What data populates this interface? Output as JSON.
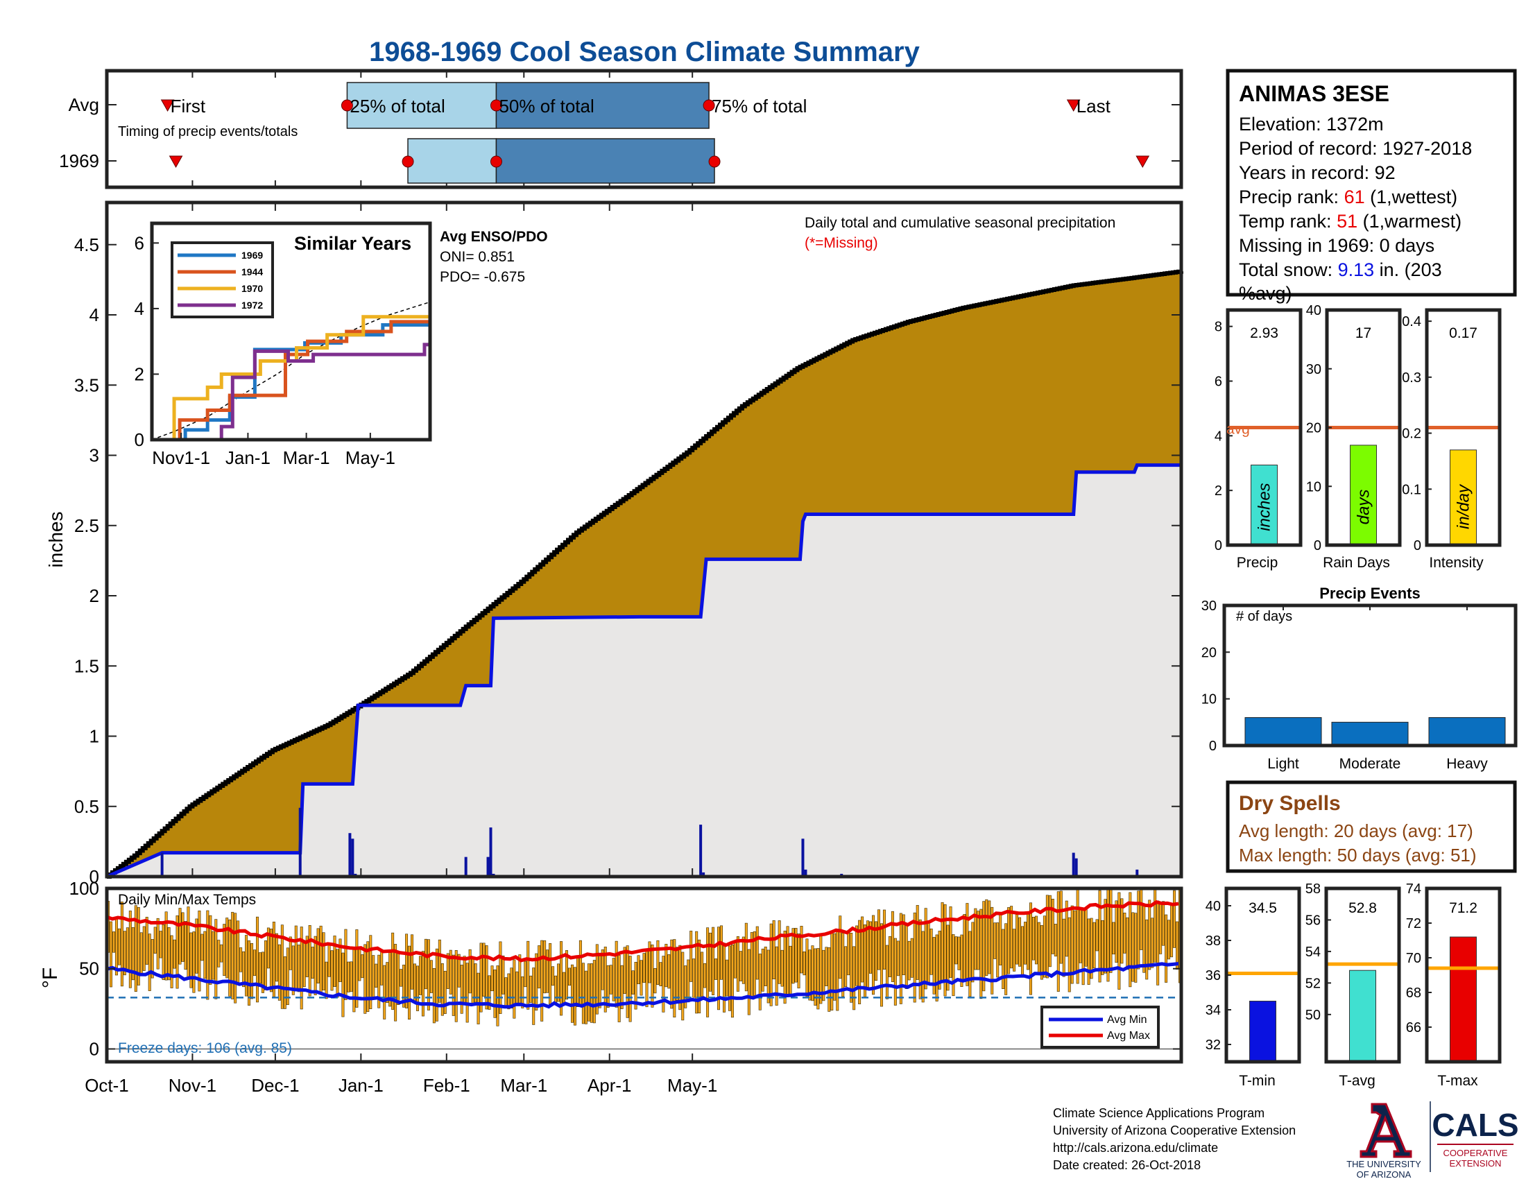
{
  "title": "1968-1969 Cool Season Climate Summary",
  "colors": {
    "title": "#0d4d96",
    "cum_fill": "#b8860b",
    "avg_fill": "#e8e7e6",
    "cum_line": "#000000",
    "blue_line": "#0a12e0",
    "bar_dark": "#0a12a0",
    "avg_line": "#e0602a",
    "light_blue": "#a8d4e8",
    "dark_blue": "#4a82b4",
    "marker_red": "#e80000",
    "temp_bar": "#f2a51c",
    "avg_min": "#0a12e0",
    "avg_max": "#e80000",
    "freeze": "#1f6fb4",
    "dry": "#8b4513",
    "event_bar": "#0a6fbf",
    "precip_bar": "#40e0d0",
    "raindays_bar": "#7cfc00",
    "intensity_bar": "#ffd700",
    "tmin_bar": "#0a12e0",
    "tavg_bar": "#40e0d0",
    "tmax_bar": "#e80000",
    "temp_avg_line": "#ffa500"
  },
  "timing": {
    "row_labels": [
      "Avg",
      "1969"
    ],
    "note": "Timing of precip events/totals",
    "first_label": "First",
    "last_label": "Last",
    "q25_label": "25% of total",
    "q50_label": "50% of total",
    "q75_label": "75% of total",
    "avg": {
      "first": 22,
      "q25": 87,
      "q50": 141,
      "q75": 218,
      "last": 350
    },
    "y1969": {
      "first": 25,
      "q25": 109,
      "q50": 141,
      "q75": 220,
      "last": 375
    }
  },
  "station": {
    "name": "ANIMAS 3ESE",
    "elevation": "Elevation: 1372m",
    "period": "Period of record: 1927-2018",
    "years": "Years in record: 92",
    "precip_rank_prefix": "Precip rank: ",
    "precip_rank_value": "61",
    "precip_rank_suffix": " (1,wettest)",
    "temp_rank_prefix": "Temp rank: ",
    "temp_rank_value": "51",
    "temp_rank_suffix": " (1,warmest)",
    "missing": "Missing in 1969: 0 days",
    "snow_prefix": "Total snow: ",
    "snow_value": "9.13",
    "snow_suffix": " in. (203",
    "snow_line2": "%avg)"
  },
  "precip_panel": {
    "ylabel": "inches",
    "subtitle": "Daily total and cumulative seasonal precipitation",
    "missing_note": "(*=Missing)",
    "enso_title": "Avg ENSO/PDO",
    "oni": "ONI= 0.851",
    "pdo": "PDO= -0.675"
  },
  "similar_years": {
    "title": "Similar Years",
    "legend": [
      "1969",
      "1944",
      "1970",
      "1972"
    ],
    "colors": [
      "#1f77c4",
      "#d9531e",
      "#edb120",
      "#7e2f8e"
    ],
    "xticks": [
      "Nov1-1",
      "Jan-1",
      "Mar-1",
      "May-1"
    ],
    "yticks": [
      "0",
      "2",
      "4",
      "6"
    ]
  },
  "season_axis": [
    "Oct-1",
    "Nov-1",
    "Dec-1",
    "Jan-1",
    "Feb-1",
    "Mar-1",
    "Apr-1",
    "May-1"
  ],
  "temp_panel": {
    "ylabel": "°F",
    "title": "Daily Min/Max Temps",
    "freeze": "Freeze days: 106 (avg. 85)",
    "legend_min": "Avg Min",
    "legend_max": "Avg Max",
    "yticks": [
      "0",
      "50",
      "100"
    ]
  },
  "mini_bars": [
    {
      "label": "Precip",
      "value_text": "2.93",
      "unit": "inches",
      "value": 2.93,
      "avg": 4.3,
      "ymax": 8.6,
      "ticks": [
        "0",
        "2",
        "4",
        "6",
        "8"
      ],
      "avg_label": "avg"
    },
    {
      "label": "Rain Days",
      "value_text": "17",
      "unit": "days",
      "value": 17,
      "avg": 20,
      "ymax": 40,
      "ticks": [
        "0",
        "10",
        "20",
        "30",
        "40"
      ]
    },
    {
      "label": "Intensity",
      "value_text": "0.17",
      "unit": "in/day",
      "value": 0.17,
      "avg": 0.21,
      "ymax": 0.42,
      "ticks": [
        "0",
        "0.1",
        "0.2",
        "0.3",
        "0.4"
      ]
    }
  ],
  "precip_events": {
    "title": "Precip Events",
    "ylabel": "# of days",
    "categories": [
      "Light",
      "Moderate",
      "Heavy"
    ],
    "values": [
      6,
      5,
      6
    ],
    "yticks": [
      "0",
      "10",
      "20",
      "30"
    ]
  },
  "dry_spells": {
    "title": "Dry Spells",
    "avg_length": "Avg length: 20 days (avg: 17)",
    "max_length": "Max length: 50 days (avg: 51)"
  },
  "temp_bars": [
    {
      "label": "T-min",
      "value_text": "34.5",
      "value": 34.5,
      "avg": 36.1,
      "ymin": 31,
      "ymax": 41,
      "ticks": [
        "32",
        "34",
        "36",
        "38",
        "40"
      ]
    },
    {
      "label": "T-avg",
      "value_text": "52.8",
      "value": 52.8,
      "avg": 53.2,
      "ymin": 47,
      "ymax": 58,
      "ticks": [
        "50",
        "52",
        "54",
        "56",
        "58"
      ]
    },
    {
      "label": "T-max",
      "value_text": "71.2",
      "value": 71.2,
      "avg": 69.4,
      "ymin": 64,
      "ymax": 74,
      "ticks": [
        "66",
        "68",
        "70",
        "72",
        "74"
      ]
    }
  ],
  "footer": {
    "line1": "Climate Science Applications Program",
    "line2": "University of Arizona Cooperative Extension",
    "line3": "http://cals.arizona.edu/climate",
    "line4": " Date created: 26-Oct-2018",
    "logo_ua_line1": "THE UNIVERSITY",
    "logo_ua_line2": "OF ARIZONA",
    "logo_cals": "CALS",
    "logo_coop1": "COOPERATIVE",
    "logo_coop2": "EXTENSION"
  },
  "chart_data": [
    {
      "type": "area",
      "title": "Daily total and cumulative seasonal precipitation",
      "ylabel": "inches",
      "ylim": [
        0,
        4.8
      ],
      "x_units": "day of season (0 = Oct-1)",
      "series": [
        {
          "name": "cumulative average",
          "x": [
            0,
            10,
            30,
            60,
            80,
            90,
            110,
            130,
            150,
            170,
            190,
            210,
            230,
            250,
            270,
            290,
            310,
            330,
            350,
            370,
            389
          ],
          "values": [
            0,
            0.15,
            0.5,
            0.9,
            1.08,
            1.2,
            1.45,
            1.78,
            2.1,
            2.45,
            2.73,
            3.02,
            3.35,
            3.62,
            3.82,
            3.95,
            4.05,
            4.13,
            4.21,
            4.26,
            4.31
          ]
        },
        {
          "name": "1969 cumulative",
          "x": [
            0,
            20,
            70,
            71,
            89,
            91,
            128,
            130,
            139,
            140,
            193,
            215,
            217,
            251,
            252,
            253,
            350,
            351,
            372,
            373,
            389
          ],
          "values": [
            0,
            0.17,
            0.17,
            0.66,
            0.66,
            1.22,
            1.22,
            1.36,
            1.36,
            1.84,
            1.85,
            1.85,
            2.26,
            2.26,
            2.53,
            2.58,
            2.58,
            2.88,
            2.88,
            2.93,
            2.93
          ]
        },
        {
          "name": "daily precip",
          "x": [
            20,
            70,
            88,
            89,
            90,
            130,
            138,
            139,
            140,
            215,
            216,
            252,
            253,
            266,
            350,
            351,
            373
          ],
          "values": [
            0.17,
            0.49,
            0.31,
            0.27,
            0.02,
            0.14,
            0.14,
            0.35,
            0.02,
            0.37,
            0.03,
            0.27,
            0.05,
            0.02,
            0.17,
            0.13,
            0.05
          ]
        }
      ]
    },
    {
      "type": "bar",
      "title": "Daily Min/Max Temps",
      "ylabel": "°F",
      "ylim": [
        -8,
        100
      ],
      "avg_min": {
        "x": [
          0,
          30,
          60,
          90,
          120,
          150,
          180,
          210,
          240,
          270,
          300,
          330,
          360,
          389
        ],
        "values": [
          50,
          44,
          38,
          32,
          28,
          27,
          28,
          30,
          33,
          37,
          41,
          45,
          49,
          53
        ]
      },
      "avg_max": {
        "x": [
          0,
          30,
          60,
          90,
          120,
          150,
          180,
          210,
          240,
          270,
          300,
          330,
          360,
          389
        ],
        "values": [
          82,
          77,
          70,
          63,
          58,
          56,
          59,
          63,
          69,
          74,
          80,
          85,
          89,
          91
        ]
      }
    },
    {
      "type": "bar",
      "title": "Precip Events",
      "categories": [
        "Light",
        "Moderate",
        "Heavy"
      ],
      "values": [
        6,
        5,
        6
      ],
      "ylim": [
        0,
        30
      ]
    }
  ]
}
